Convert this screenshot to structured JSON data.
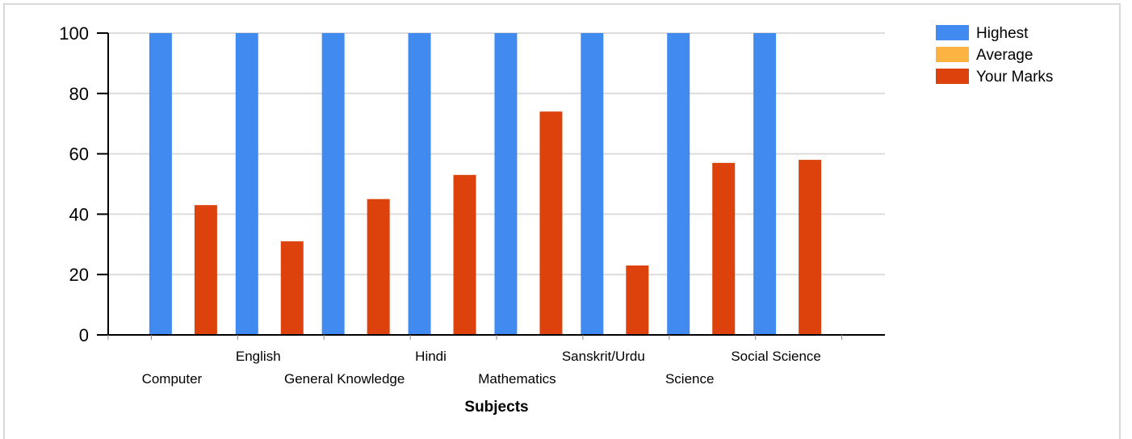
{
  "chart_data": {
    "type": "bar",
    "xlabel": "Subjects",
    "ylabel": "",
    "ylim": [
      0,
      100
    ],
    "yticks": [
      0,
      20,
      40,
      60,
      80,
      100
    ],
    "grid": true,
    "legend_position": "top-right",
    "categories": [
      "Computer",
      "English",
      "General Knowledge",
      "Hindi",
      "Mathematics",
      "Sanskrit/Urdu",
      "Science",
      "Social Science"
    ],
    "series": [
      {
        "name": "Highest",
        "color": "#418bf0",
        "values": [
          100,
          100,
          100,
          100,
          100,
          100,
          100,
          100
        ]
      },
      {
        "name": "Average",
        "color": "#fdb342",
        "values": [
          0,
          0,
          0,
          0,
          0,
          0,
          0,
          0
        ]
      },
      {
        "name": "Your Marks",
        "color": "#dd410c",
        "values": [
          43,
          31,
          45,
          53,
          74,
          23,
          57,
          58
        ]
      }
    ]
  }
}
